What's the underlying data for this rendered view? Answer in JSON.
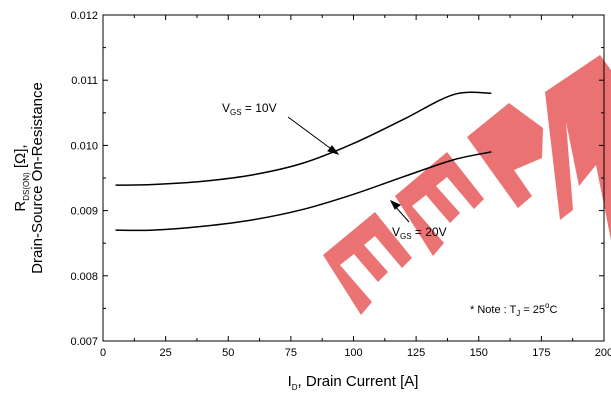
{
  "watermark": {
    "text": "EEPW",
    "color": "#e85a5a"
  },
  "chart_data": {
    "type": "line",
    "xlabel": {
      "prefix": "I",
      "sub": "D",
      "rest": ", Drain Current [A]"
    },
    "ylabel": {
      "line1_prefix": "R",
      "line1_sub": "DS(ON)",
      "line1_rest": " [Ω],",
      "line2": "Drain-Source On-Resistance"
    },
    "xlim": [
      0,
      200
    ],
    "ylim": [
      0.007,
      0.012
    ],
    "xticks": [
      0,
      25,
      50,
      75,
      100,
      125,
      150,
      175,
      200
    ],
    "yticks": [
      0.007,
      0.008,
      0.009,
      0.01,
      0.011,
      0.012
    ],
    "ytick_labels": [
      "0.007",
      "0.008",
      "0.009",
      "0.010",
      "0.011",
      "0.012"
    ],
    "series": [
      {
        "name": "VGS = 10V",
        "x": [
          5,
          20,
          40,
          60,
          80,
          100,
          120,
          140,
          155
        ],
        "y": [
          0.00939,
          0.0094,
          0.00945,
          0.00955,
          0.00973,
          0.01003,
          0.0104,
          0.01078,
          0.0108
        ]
      },
      {
        "name": "VGS = 20V",
        "x": [
          5,
          20,
          40,
          60,
          80,
          100,
          120,
          140,
          155
        ],
        "y": [
          0.0087,
          0.0087,
          0.00876,
          0.00886,
          0.00902,
          0.00925,
          0.00952,
          0.00978,
          0.0099
        ]
      }
    ],
    "annotations": [
      {
        "prefix": "V",
        "sub": "GS",
        "rest": " = 10V"
      },
      {
        "prefix": "V",
        "sub": "GS",
        "rest": " = 20V"
      }
    ],
    "note": {
      "prefix": "* Note : T",
      "sub": "J",
      "rest": " = 25",
      "sup": "o",
      "tail": "C"
    },
    "line_color": "#000000"
  }
}
